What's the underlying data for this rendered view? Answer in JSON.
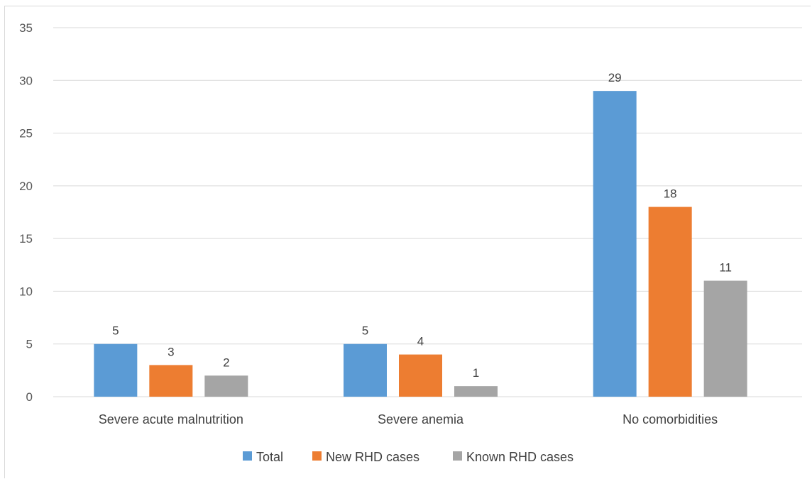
{
  "chart_data": {
    "type": "bar",
    "categories": [
      "Severe acute malnutrition",
      "Severe anemia",
      "No comorbidities"
    ],
    "series": [
      {
        "name": "Total",
        "values": [
          5,
          5,
          29
        ],
        "color": "#5b9bd5"
      },
      {
        "name": "New RHD cases",
        "values": [
          3,
          4,
          18
        ],
        "color": "#ed7d31"
      },
      {
        "name": "Known RHD cases",
        "values": [
          2,
          1,
          11
        ],
        "color": "#a5a5a5"
      }
    ],
    "ylim": [
      0,
      35
    ],
    "yticks": [
      0,
      5,
      10,
      15,
      20,
      25,
      30,
      35
    ],
    "grid": true,
    "legend_position": "bottom",
    "title": "",
    "xlabel": "",
    "ylabel": ""
  }
}
